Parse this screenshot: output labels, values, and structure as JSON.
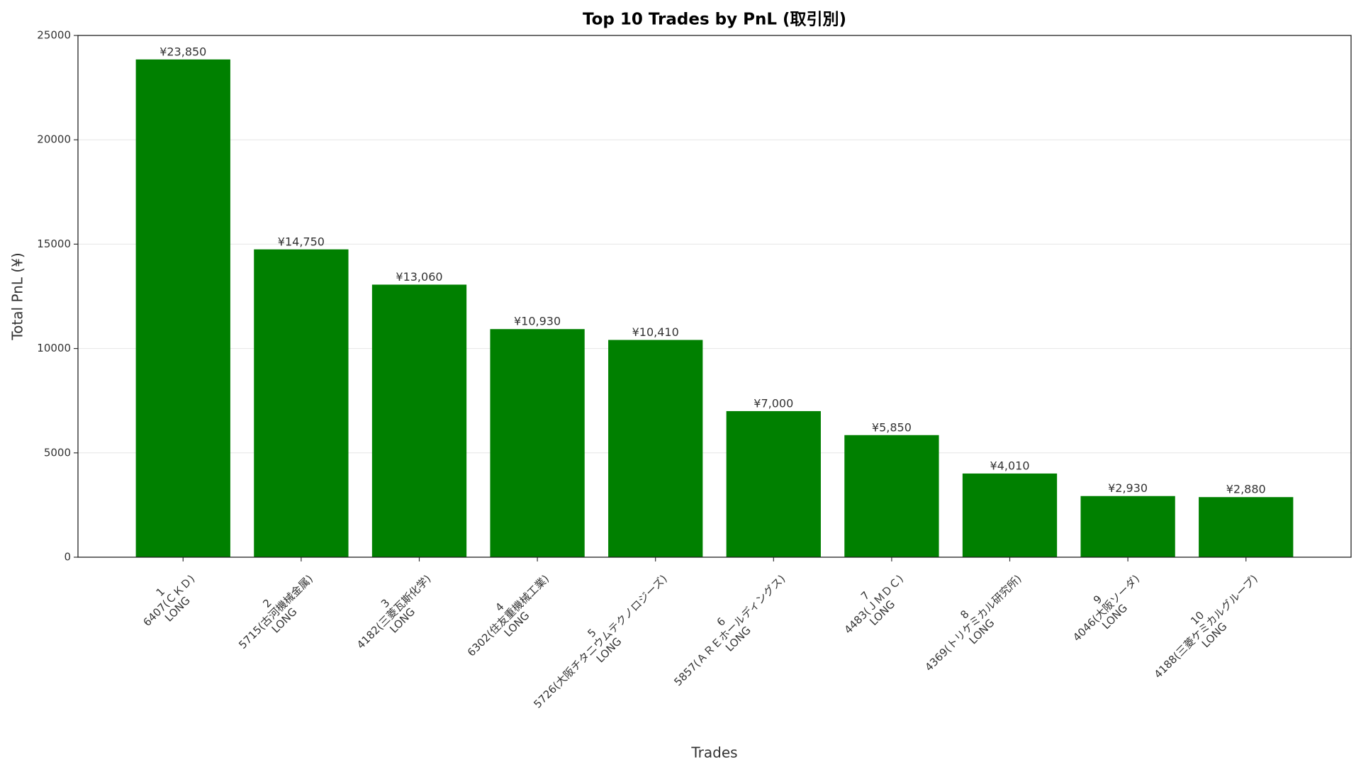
{
  "chart_data": {
    "type": "bar",
    "title": "Top 10 Trades by PnL (取引別)",
    "x_label": "Trades",
    "y_label": "Total PnL (¥)",
    "categories": [
      [
        "1",
        "6407(ＣＫＤ)",
        "LONG"
      ],
      [
        "2",
        "5715(古河機械金属)",
        "LONG"
      ],
      [
        "3",
        "4182(三菱瓦斯化学)",
        "LONG"
      ],
      [
        "4",
        "6302(住友重機械工業)",
        "LONG"
      ],
      [
        "5",
        "5726(大阪チタニウムテクノロジーズ)",
        "LONG"
      ],
      [
        "6",
        "5857(ＡＲＥホールディングス)",
        "LONG"
      ],
      [
        "7",
        "4483(ＪＭＤＣ)",
        "LONG"
      ],
      [
        "8",
        "4369(トリケミカル研究所)",
        "LONG"
      ],
      [
        "9",
        "4046(大阪ソーダ)",
        "LONG"
      ],
      [
        "10",
        "4188(三菱ケミカルグループ)",
        "LONG"
      ]
    ],
    "values": [
      23850,
      14750,
      13060,
      10930,
      10410,
      7000,
      5850,
      4010,
      2930,
      2880
    ],
    "value_labels": [
      "¥23,850",
      "¥14,750",
      "¥13,060",
      "¥10,930",
      "¥10,410",
      "¥7,000",
      "¥5,850",
      "¥4,010",
      "¥2,930",
      "¥2,880"
    ],
    "color": "#008000",
    "ylim": [
      0,
      25000
    ],
    "yticks": [
      0,
      5000,
      10000,
      15000,
      20000,
      25000
    ],
    "grid": true
  }
}
